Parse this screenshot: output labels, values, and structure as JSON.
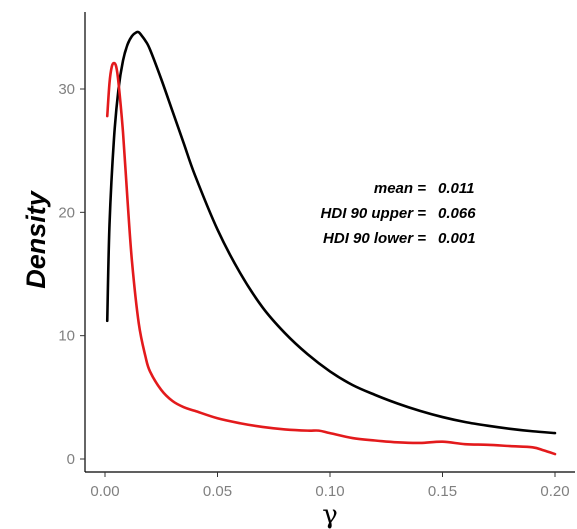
{
  "chart_data": {
    "type": "line",
    "title": "",
    "xlabel": "γ",
    "ylabel": "Density",
    "xlim": [
      -0.01,
      0.205
    ],
    "ylim": [
      -1,
      36
    ],
    "xticks": [
      0.0,
      0.05,
      0.1,
      0.15,
      0.2
    ],
    "xtick_labels": [
      "0.00",
      "0.05",
      "0.10",
      "0.15",
      "0.20"
    ],
    "yticks": [
      0,
      10,
      20,
      30
    ],
    "ytick_labels": [
      "0",
      "10",
      "20",
      "30"
    ],
    "grid": false,
    "legend": "none",
    "annotations": [
      {
        "label": "mean =",
        "value": "0.011"
      },
      {
        "label": "HDI 90 upper =",
        "value": "0.066"
      },
      {
        "label": "HDI 90 lower =",
        "value": "0.001"
      }
    ],
    "series": [
      {
        "color": "#000000",
        "x": [
          0.001,
          0.002,
          0.004,
          0.006,
          0.008,
          0.01,
          0.012,
          0.014,
          0.015,
          0.016,
          0.018,
          0.02,
          0.025,
          0.03,
          0.035,
          0.04,
          0.05,
          0.06,
          0.07,
          0.08,
          0.09,
          0.1,
          0.11,
          0.12,
          0.13,
          0.14,
          0.15,
          0.16,
          0.17,
          0.18,
          0.19,
          0.2
        ],
        "y": [
          11.2,
          19.0,
          26.0,
          30.0,
          32.3,
          33.6,
          34.3,
          34.6,
          34.6,
          34.4,
          33.9,
          33.2,
          30.8,
          28.2,
          25.6,
          23.0,
          18.6,
          15.1,
          12.3,
          10.2,
          8.5,
          7.1,
          6.0,
          5.2,
          4.5,
          3.9,
          3.4,
          3.0,
          2.7,
          2.45,
          2.25,
          2.1
        ]
      },
      {
        "color": "#e31a1c",
        "x": [
          0.001,
          0.002,
          0.003,
          0.004,
          0.005,
          0.006,
          0.008,
          0.01,
          0.012,
          0.015,
          0.018,
          0.02,
          0.025,
          0.03,
          0.035,
          0.04,
          0.05,
          0.06,
          0.07,
          0.08,
          0.09,
          0.095,
          0.1,
          0.11,
          0.12,
          0.13,
          0.14,
          0.15,
          0.16,
          0.17,
          0.18,
          0.19,
          0.195,
          0.2
        ],
        "y": [
          27.8,
          30.5,
          31.8,
          32.1,
          31.8,
          30.5,
          26.5,
          21.0,
          16.0,
          11.0,
          8.3,
          7.1,
          5.6,
          4.7,
          4.2,
          3.9,
          3.3,
          2.9,
          2.6,
          2.4,
          2.3,
          2.3,
          2.1,
          1.7,
          1.5,
          1.35,
          1.3,
          1.4,
          1.2,
          1.15,
          1.05,
          0.95,
          0.7,
          0.4
        ]
      }
    ]
  }
}
